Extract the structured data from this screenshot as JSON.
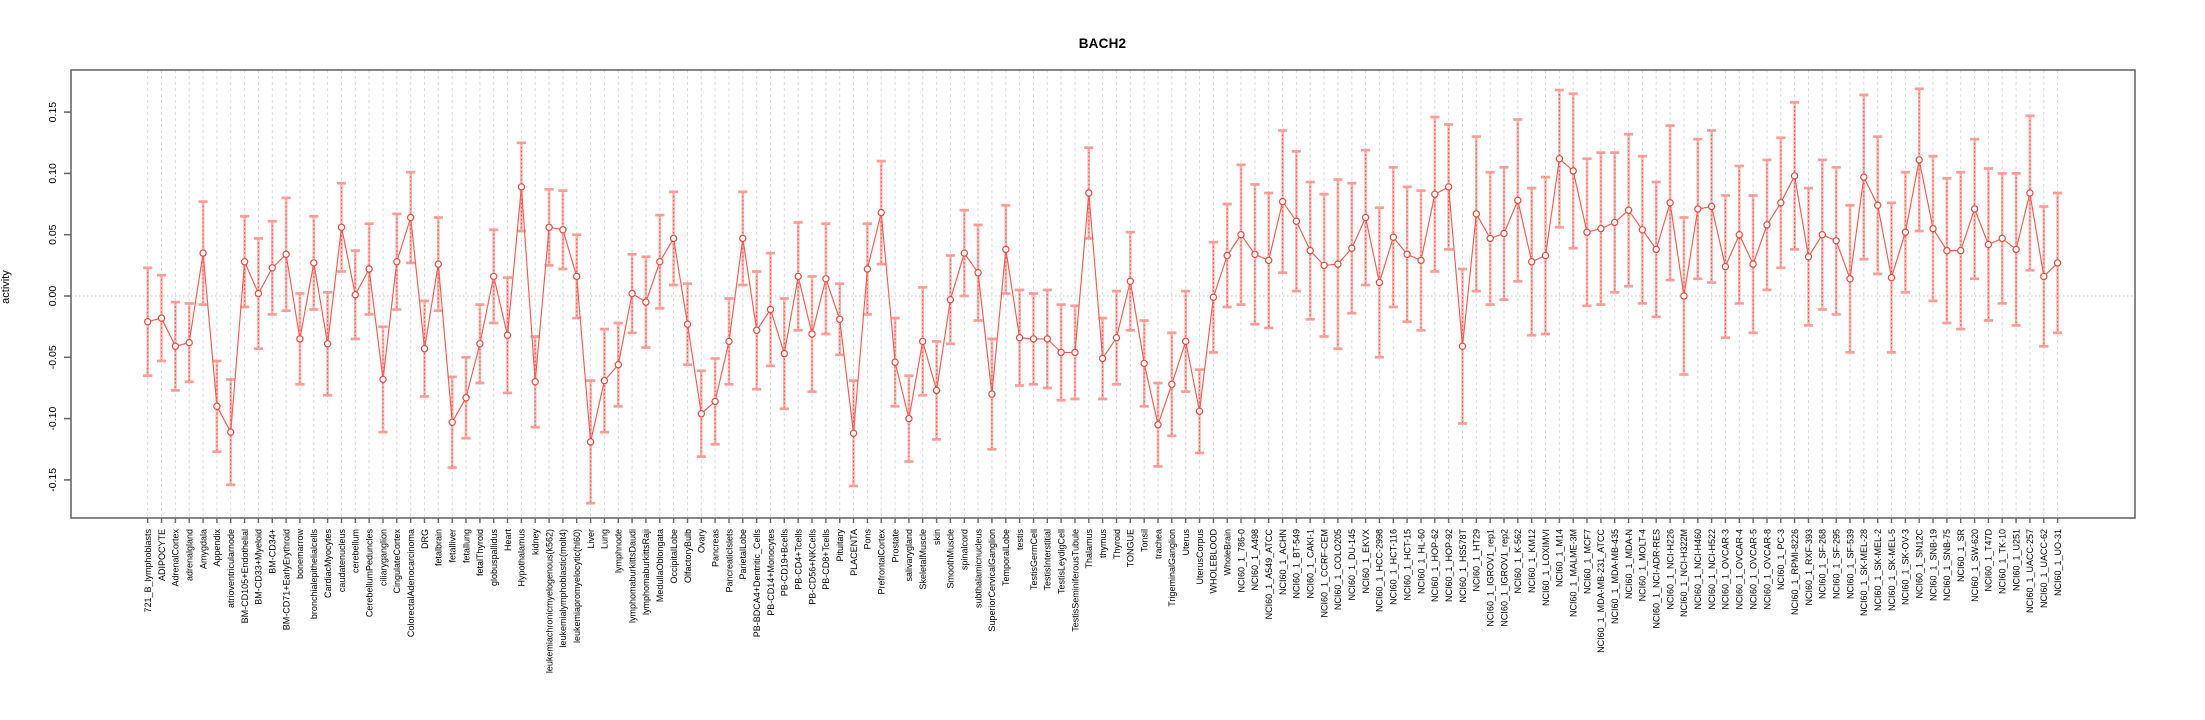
{
  "page": {
    "background": "#ffffff"
  },
  "chart_data": {
    "type": "line",
    "subtype": "points-with-error-bars",
    "title": "BACH2",
    "xlabel": "",
    "ylabel": "activity",
    "ylim": [
      -0.183,
      0.183
    ],
    "yticks": [
      -0.15,
      -0.1,
      -0.05,
      0,
      0.05,
      0.1,
      0.15
    ],
    "ytick_labels": [
      "-0.15",
      "-0.10",
      "-0.05",
      "0.00",
      "0.05",
      "0.10",
      "0.15"
    ],
    "grid": "vertical dashed gridline per category; dotted horizontal line at 0",
    "legend_position": "none",
    "colors": {
      "series": "#ff5a52",
      "marker_stroke": "#f4473e",
      "errorbar_stem": "#ffaaa4",
      "errorbar_stem_dotted": "#ef4f46",
      "errorbar_cap": "#ff9e98",
      "frame": "#696969",
      "gridline": "#dcdcdc",
      "zero_line": "#c9c9c9",
      "text": "#000000"
    },
    "categories": [
      "721_B_lymphoblasts",
      "ADIPOCYTE",
      "AdrenalCortex",
      "adrenalgland",
      "Amygdala",
      "Appendix",
      "atrioventricularnode",
      "BM-CD105+Endothelial",
      "BM-CD33+Myeloid",
      "BM-CD34+",
      "BM-CD71+EarlyErythroid",
      "bonemarrow",
      "bronchialepithelialcells",
      "CardiacMyocytes",
      "caudatenucleus",
      "cerebellum",
      "CerebellumPeduncles",
      "ciliaryganglion",
      "CingulateCortex",
      "ColorectalAdenocarcinoma",
      "DRG",
      "fetalbrain",
      "fetalliver",
      "fetallung",
      "fetalThyroid",
      "globuspallidus",
      "Heart",
      "Hypothalamus",
      "kidney",
      "leukemiachronicmyelogenous(k562)",
      "leukemialymphoblastic(molt4)",
      "leukemiapromyelocytic(hl60)",
      "Liver",
      "Lung",
      "lymphnode",
      "lymphomaburkittsDaudi",
      "lymphomaburkittsRaji",
      "MedullaOblongata",
      "OccipitalLobe",
      "OlfactoryBulb",
      "Ovary",
      "Pancreas",
      "PancreaticIslets",
      "ParietalLobe",
      "PB-BDCA4+Dentritic_Cells",
      "PB-CD14+Monocytes",
      "PB-CD19+Bcells",
      "PB-CD4+Tcells",
      "PB-CD56+NKCells",
      "PB-CD8+Tcells",
      "Pituitary",
      "PLACENTA",
      "Pons",
      "PrefrontalCortex",
      "Prostate",
      "salivarygland",
      "SkeletalMuscle",
      "skin",
      "SmoothMuscle",
      "spinalcord",
      "subthalamicnucleus",
      "SuperiorCervicalGanglion",
      "TemporalLobe",
      "testis",
      "TestisGermCell",
      "TestisInterstitial",
      "TestisLeydigCell",
      "TestisSeminiferousTubule",
      "Thalamus",
      "thymus",
      "Thyroid",
      "TONGUE",
      "Tonsil",
      "trachea",
      "TrigeminalGanglion",
      "Uterus",
      "UterusCorpus",
      "WHOLEBLOOD",
      "WholeBrain",
      "NCI60_1_786-0",
      "NCI60_1_A498",
      "NCI60_1_A549_ATCC",
      "NCI60_1_ACHN",
      "NCI60_1_BT-549",
      "NCI60_1_CAKI-1",
      "NCI60_1_CCRF-CEM",
      "NCI60_1_COLO205",
      "NCI60_1_DU-145",
      "NCI60_1_EKVX",
      "NCI60_1_HCC-2998",
      "NCI60_1_HCT-116",
      "NCI60_1_HCT-15",
      "NCI60_1_HL-60",
      "NCI60_1_HOP-62",
      "NCI60_1_HOP-92",
      "NCI60_1_HS578T",
      "NCI60_1_HT29",
      "NCI60_1_IGROV1_rep1",
      "NCI60_1_IGROV1_rep2",
      "NCI60_1_K-562",
      "NCI60_1_KM12",
      "NCI60_1_LOXIMVI",
      "NCI60_1_M14",
      "NCI60_1_MALME-3M",
      "NCI60_1_MCF7",
      "NCI60_1_MDA-MB-231_ATCC",
      "NCI60_1_MDA-MB-435",
      "NCI60_1_MDA-N",
      "NCI60_1_MOLT-4",
      "NCI60_1_NCI-ADR-RES",
      "NCI60_1_NCI-H226",
      "NCI60_1_NCI-H322M",
      "NCI60_1_NCI-H460",
      "NCI60_1_NCI-H522",
      "NCI60_1_OVCAR-3",
      "NCI60_1_OVCAR-4",
      "NCI60_1_OVCAR-5",
      "NCI60_1_OVCAR-8",
      "NCI60_1_PC-3",
      "NCI60_1_RPMI-8226",
      "NCI60_1_RXF-393",
      "NCI60_1_SF-268",
      "NCI60_1_SF-295",
      "NCI60_1_SF-539",
      "NCI60_1_SK-MEL-28",
      "NCI60_1_SK-MEL-2",
      "NCI60_1_SK-MEL-5",
      "NCI60_1_SK-OV-3",
      "NCI60_1_SN12C",
      "NCI60_1_SNB-19",
      "NCI60_1_SNB-75",
      "NCI60_1_SR",
      "NCI60_1_SW-620",
      "NCI60_1_T47D",
      "NCI60_1_TK-10",
      "NCI60_1_U251",
      "NCI60_1_UACC-257",
      "NCI60_1_UACC-62",
      "NCI60_1_UO-31"
    ],
    "series": [
      {
        "name": "activity",
        "values": [
          -0.021,
          -0.018,
          -0.041,
          -0.038,
          0.035,
          -0.09,
          -0.111,
          0.028,
          0.002,
          0.023,
          0.034,
          -0.035,
          0.027,
          -0.039,
          0.056,
          0.001,
          0.022,
          -0.068,
          0.028,
          0.064,
          -0.043,
          0.026,
          -0.103,
          -0.083,
          -0.039,
          0.016,
          -0.032,
          0.089,
          -0.07,
          0.056,
          0.054,
          0.016,
          -0.119,
          -0.069,
          -0.056,
          0.002,
          -0.005,
          0.028,
          0.047,
          -0.023,
          -0.096,
          -0.086,
          -0.037,
          0.047,
          -0.028,
          -0.011,
          -0.047,
          0.016,
          -0.031,
          0.014,
          -0.019,
          -0.112,
          0.022,
          0.068,
          -0.054,
          -0.1,
          -0.037,
          -0.077,
          -0.003,
          0.035,
          0.019,
          -0.08,
          0.038,
          -0.034,
          -0.035,
          -0.035,
          -0.046,
          -0.046,
          0.084,
          -0.051,
          -0.034,
          0.012,
          -0.055,
          -0.105,
          -0.072,
          -0.037,
          -0.094,
          -0.001,
          0.033,
          0.05,
          0.034,
          0.029,
          0.077,
          0.061,
          0.037,
          0.025,
          0.026,
          0.039,
          0.064,
          0.011,
          0.048,
          0.034,
          0.029,
          0.083,
          0.089,
          -0.041,
          0.067,
          0.047,
          0.051,
          0.078,
          0.028,
          0.033,
          0.112,
          0.102,
          0.052,
          0.055,
          0.06,
          0.07,
          0.054,
          0.038,
          0.076,
          0.0,
          0.071,
          0.073,
          0.024,
          0.05,
          0.026,
          0.058,
          0.076,
          0.098,
          0.032,
          0.05,
          0.045,
          0.014,
          0.097,
          0.074,
          0.015,
          0.052,
          0.111,
          0.055,
          0.037,
          0.037,
          0.071,
          0.042,
          0.047,
          0.038,
          0.084,
          0.016,
          0.027
        ],
        "errors": [
          0.044,
          0.035,
          0.036,
          0.032,
          0.042,
          0.037,
          0.043,
          0.037,
          0.045,
          0.038,
          0.046,
          0.037,
          0.038,
          0.042,
          0.036,
          0.036,
          0.037,
          0.043,
          0.039,
          0.037,
          0.039,
          0.038,
          0.037,
          0.033,
          0.032,
          0.038,
          0.047,
          0.036,
          0.037,
          0.031,
          0.032,
          0.034,
          0.05,
          0.042,
          0.034,
          0.032,
          0.037,
          0.038,
          0.038,
          0.033,
          0.035,
          0.035,
          0.035,
          0.038,
          0.048,
          0.046,
          0.045,
          0.044,
          0.047,
          0.045,
          0.029,
          0.043,
          0.037,
          0.042,
          0.036,
          0.035,
          0.044,
          0.04,
          0.036,
          0.035,
          0.039,
          0.045,
          0.036,
          0.039,
          0.037,
          0.04,
          0.039,
          0.038,
          0.037,
          0.033,
          0.038,
          0.04,
          0.035,
          0.034,
          0.042,
          0.041,
          0.034,
          0.045,
          0.042,
          0.057,
          0.057,
          0.055,
          0.058,
          0.057,
          0.056,
          0.058,
          0.069,
          0.053,
          0.055,
          0.061,
          0.057,
          0.055,
          0.057,
          0.063,
          0.051,
          0.063,
          0.063,
          0.054,
          0.054,
          0.066,
          0.06,
          0.064,
          0.056,
          0.063,
          0.06,
          0.062,
          0.057,
          0.062,
          0.06,
          0.055,
          0.063,
          0.064,
          0.057,
          0.062,
          0.058,
          0.056,
          0.056,
          0.053,
          0.053,
          0.06,
          0.056,
          0.061,
          0.06,
          0.06,
          0.067,
          0.056,
          0.061,
          0.049,
          0.058,
          0.059,
          0.059,
          0.064,
          0.057,
          0.062,
          0.053,
          0.062,
          0.063,
          0.057,
          0.057
        ]
      }
    ]
  }
}
